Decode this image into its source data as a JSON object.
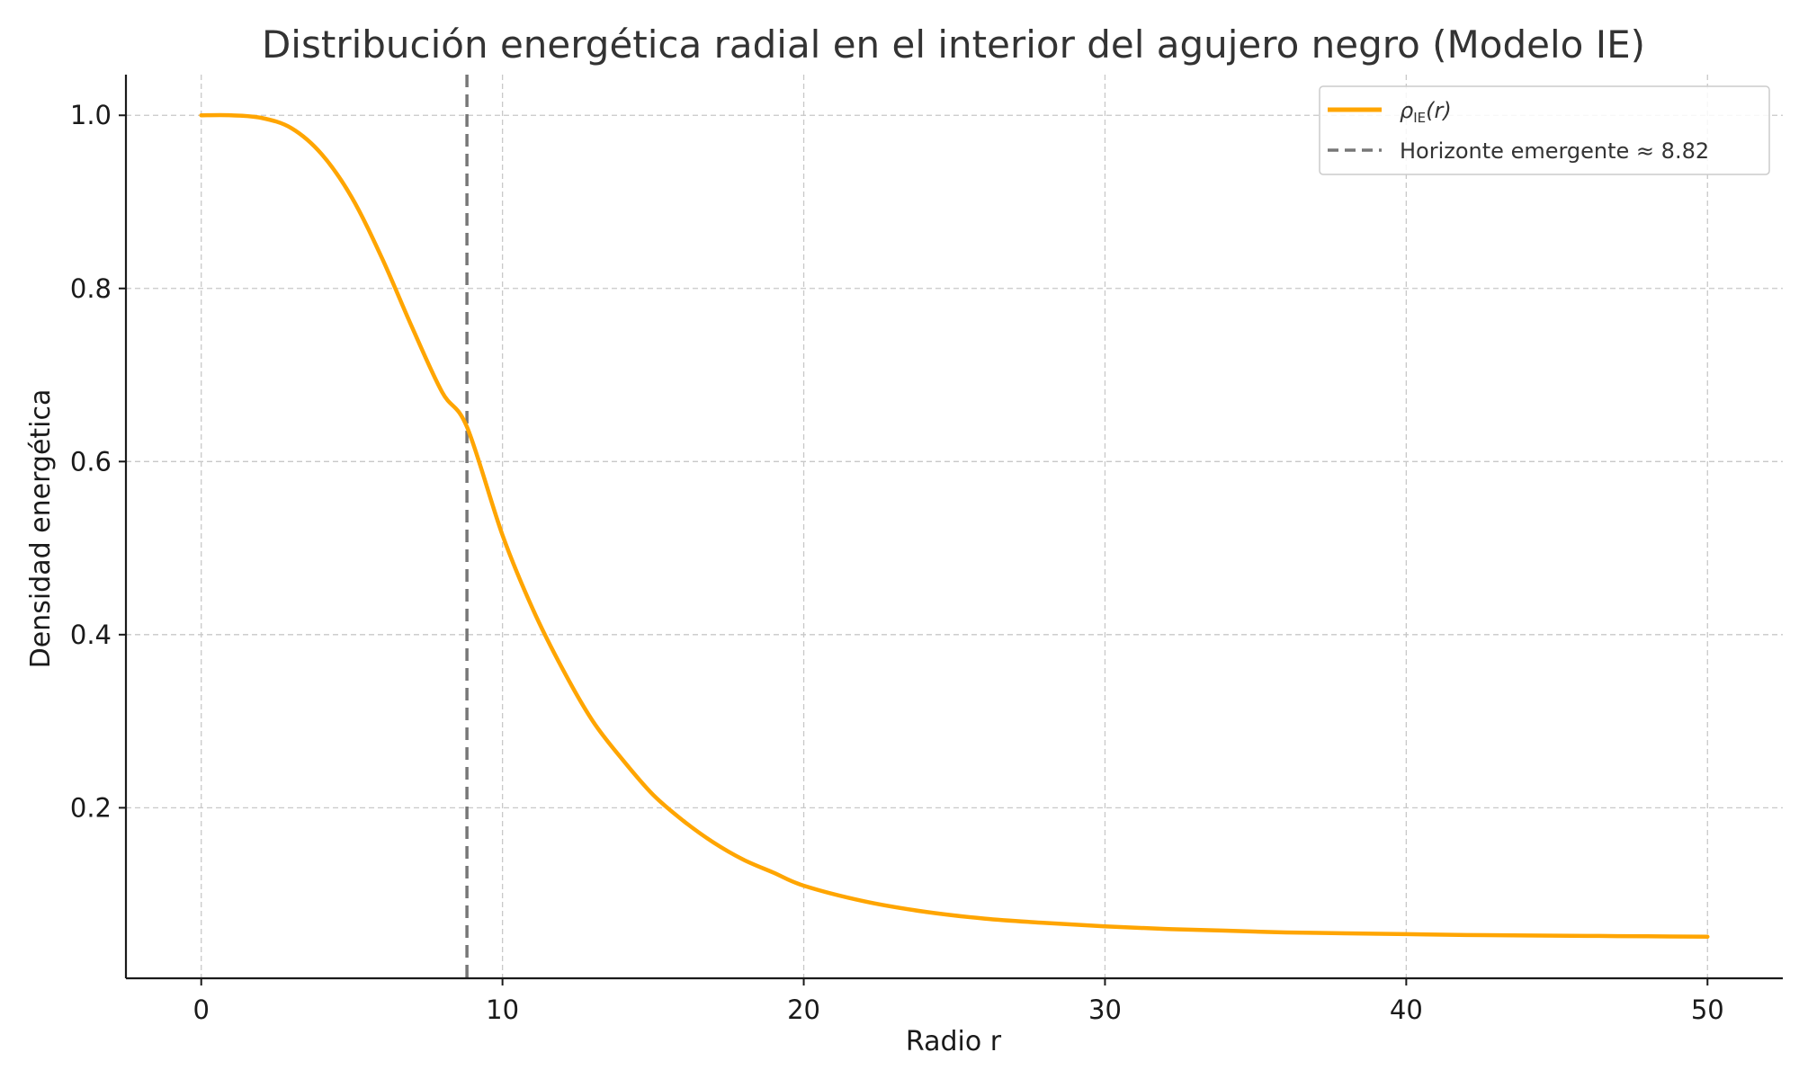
{
  "chart_data": {
    "type": "line",
    "title": "Distribución energética radial en el interior del agujero negro (Modelo IE)",
    "xlabel": "Radio r",
    "ylabel": "Densidad energética",
    "xlim": [
      -2.5,
      52.5
    ],
    "ylim": [
      0.003,
      1.047
    ],
    "xticks": [
      0,
      10,
      20,
      30,
      40,
      50
    ],
    "xtick_labels": [
      "0",
      "10",
      "20",
      "30",
      "40",
      "50"
    ],
    "yticks": [
      0.2,
      0.4,
      0.6,
      0.8,
      1.0
    ],
    "ytick_labels": [
      "0.2",
      "0.4",
      "0.6",
      "0.8",
      "1.0"
    ],
    "grid": true,
    "legend_position": "top-right",
    "series": [
      {
        "name": "ρIE(r)",
        "name_main": "ρ",
        "name_sub": "IE",
        "name_arg": "(r)",
        "color": "#FFA500",
        "style": "solid",
        "x": [
          0,
          1,
          2,
          3,
          4,
          5,
          6,
          7,
          8,
          8.82,
          10,
          11,
          12,
          13,
          14,
          15,
          16,
          17,
          18,
          19,
          20,
          22,
          24,
          26,
          28,
          30,
          32,
          34,
          36,
          38,
          40,
          42,
          44,
          46,
          48,
          50
        ],
        "y": [
          1.0,
          1.0,
          0.997,
          0.985,
          0.955,
          0.905,
          0.835,
          0.755,
          0.68,
          0.64,
          0.515,
          0.43,
          0.36,
          0.3,
          0.255,
          0.215,
          0.185,
          0.16,
          0.14,
          0.125,
          0.11,
          0.092,
          0.08,
          0.072,
          0.067,
          0.063,
          0.06,
          0.058,
          0.056,
          0.055,
          0.054,
          0.053,
          0.0525,
          0.052,
          0.0515,
          0.051
        ]
      }
    ],
    "reference_lines": [
      {
        "name": "Horizonte emergente ≈ 8.82",
        "orientation": "vertical",
        "x": 8.82,
        "color": "#777777",
        "style": "dashed"
      }
    ]
  }
}
